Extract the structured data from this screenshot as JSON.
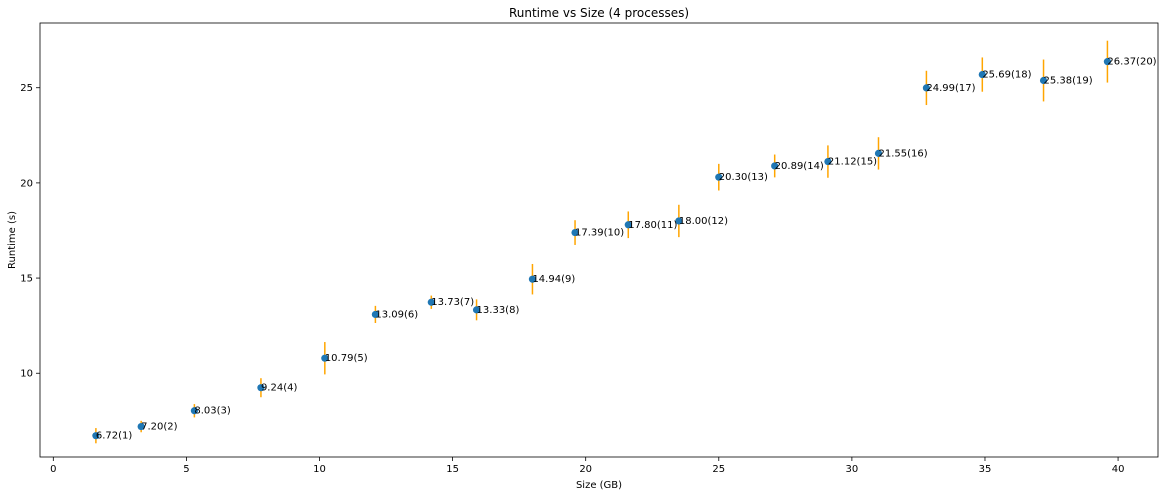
{
  "chart_data": {
    "type": "scatter",
    "title": "Runtime vs Size (4 processes)",
    "xlabel": "Size (GB)",
    "ylabel": "Runtime (s)",
    "xlim": [
      -0.5,
      41.5
    ],
    "ylim": [
      5.6,
      28.4
    ],
    "xticks": [
      0,
      5,
      10,
      15,
      20,
      25,
      30,
      35,
      40
    ],
    "yticks": [
      10,
      15,
      20,
      25
    ],
    "grid": false,
    "colors": {
      "marker": "#1f77b4",
      "errorbar": "#ffa500"
    },
    "points": [
      {
        "x": 1.6,
        "y": 6.72,
        "err": 0.4,
        "label": "6.72(1)"
      },
      {
        "x": 3.3,
        "y": 7.2,
        "err": 0.3,
        "label": "7.20(2)"
      },
      {
        "x": 5.3,
        "y": 8.03,
        "err": 0.35,
        "label": "8.03(3)"
      },
      {
        "x": 7.8,
        "y": 9.24,
        "err": 0.5,
        "label": "9.24(4)"
      },
      {
        "x": 10.2,
        "y": 10.79,
        "err": 0.85,
        "label": "10.79(5)"
      },
      {
        "x": 12.1,
        "y": 13.09,
        "err": 0.45,
        "label": "13.09(6)"
      },
      {
        "x": 14.2,
        "y": 13.73,
        "err": 0.35,
        "label": "13.73(7)"
      },
      {
        "x": 15.9,
        "y": 13.33,
        "err": 0.55,
        "label": "13.33(8)"
      },
      {
        "x": 18.0,
        "y": 14.94,
        "err": 0.8,
        "label": "14.94(9)"
      },
      {
        "x": 19.6,
        "y": 17.39,
        "err": 0.65,
        "label": "17.39(10)"
      },
      {
        "x": 21.6,
        "y": 17.8,
        "err": 0.7,
        "label": "17.80(11)"
      },
      {
        "x": 23.5,
        "y": 18.0,
        "err": 0.85,
        "label": "18.00(12)"
      },
      {
        "x": 25.0,
        "y": 20.3,
        "err": 0.7,
        "label": "20.30(13)"
      },
      {
        "x": 27.1,
        "y": 20.89,
        "err": 0.6,
        "label": "20.89(14)"
      },
      {
        "x": 29.1,
        "y": 21.12,
        "err": 0.85,
        "label": "21.12(15)"
      },
      {
        "x": 31.0,
        "y": 21.55,
        "err": 0.85,
        "label": "21.55(16)"
      },
      {
        "x": 32.8,
        "y": 24.99,
        "err": 0.9,
        "label": "24.99(17)"
      },
      {
        "x": 34.9,
        "y": 25.69,
        "err": 0.9,
        "label": "25.69(18)"
      },
      {
        "x": 37.2,
        "y": 25.38,
        "err": 1.1,
        "label": "25.38(19)"
      },
      {
        "x": 39.6,
        "y": 26.37,
        "err": 1.1,
        "label": "26.37(20)"
      }
    ]
  }
}
